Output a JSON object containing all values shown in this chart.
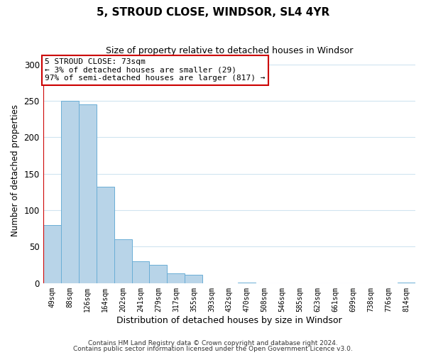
{
  "title": "5, STROUD CLOSE, WINDSOR, SL4 4YR",
  "subtitle": "Size of property relative to detached houses in Windsor",
  "xlabel": "Distribution of detached houses by size in Windsor",
  "ylabel": "Number of detached properties",
  "bar_labels": [
    "49sqm",
    "88sqm",
    "126sqm",
    "164sqm",
    "202sqm",
    "241sqm",
    "279sqm",
    "317sqm",
    "355sqm",
    "393sqm",
    "432sqm",
    "470sqm",
    "508sqm",
    "546sqm",
    "585sqm",
    "623sqm",
    "661sqm",
    "699sqm",
    "738sqm",
    "776sqm",
    "814sqm"
  ],
  "bar_values": [
    80,
    250,
    245,
    132,
    60,
    30,
    25,
    13,
    12,
    0,
    0,
    1,
    0,
    0,
    0,
    0,
    0,
    0,
    0,
    0,
    1
  ],
  "bar_color": "#b8d4e8",
  "bar_edgecolor": "#6aaed6",
  "marker_color": "#cc0000",
  "annotation_title": "5 STROUD CLOSE: 73sqm",
  "annotation_line1": "← 3% of detached houses are smaller (29)",
  "annotation_line2": "97% of semi-detached houses are larger (817) →",
  "annotation_box_facecolor": "#ffffff",
  "annotation_box_edgecolor": "#cc0000",
  "ylim": [
    0,
    310
  ],
  "yticks": [
    0,
    50,
    100,
    150,
    200,
    250,
    300
  ],
  "grid_color": "#d0e4f0",
  "footer1": "Contains HM Land Registry data © Crown copyright and database right 2024.",
  "footer2": "Contains public sector information licensed under the Open Government Licence v3.0."
}
